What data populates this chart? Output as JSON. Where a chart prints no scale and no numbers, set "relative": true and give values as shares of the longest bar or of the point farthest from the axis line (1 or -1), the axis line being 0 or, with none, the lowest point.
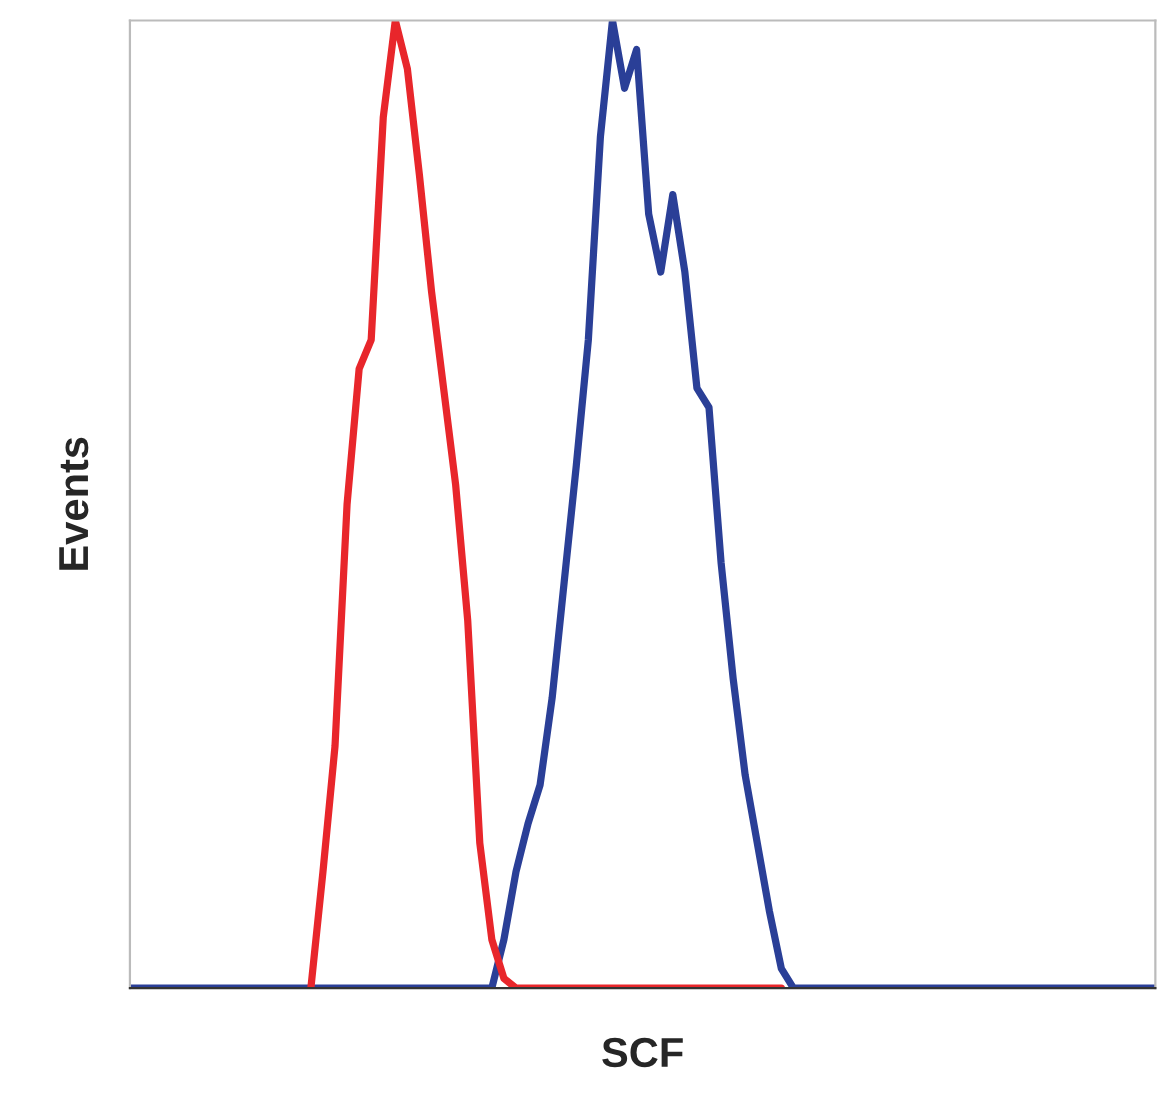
{
  "chart_data": {
    "type": "line",
    "relative": true,
    "xlabel": "SCF",
    "ylabel": "Events",
    "grid": false,
    "legend": false,
    "marker": "none",
    "line_style": "solid",
    "categories": [
      null,
      null,
      null,
      null,
      null,
      null,
      null,
      null,
      null,
      null,
      null,
      null,
      null,
      null,
      null,
      null,
      null,
      null,
      null,
      null,
      null,
      null,
      null,
      null,
      null,
      null,
      null,
      null,
      null,
      null,
      null,
      null,
      null,
      null,
      null,
      null,
      null,
      null,
      null,
      null,
      null,
      null,
      null,
      null,
      null,
      null,
      null,
      null,
      null,
      null,
      null,
      null,
      null,
      null,
      null,
      null,
      null,
      null,
      null,
      null,
      null,
      null,
      null,
      null,
      null,
      null,
      null,
      null,
      null,
      null,
      null,
      null,
      null,
      null,
      null,
      null,
      null,
      null,
      null,
      null,
      null,
      null,
      null,
      null,
      null,
      null
    ],
    "series": [
      {
        "color": "#2a3f97",
        "values": [
          0,
          0,
          0,
          0,
          0,
          0,
          0,
          0,
          0,
          0,
          0,
          0,
          0,
          0,
          0,
          0,
          0,
          0,
          0,
          0,
          0,
          0,
          0,
          0,
          0,
          0,
          0,
          0,
          0,
          0,
          0,
          0.05,
          0.12,
          0.17,
          0.21,
          0.3,
          0.42,
          0.54,
          0.67,
          0.88,
          1.0,
          0.93,
          0.97,
          0.8,
          0.74,
          0.82,
          0.74,
          0.62,
          0.6,
          0.44,
          0.32,
          0.22,
          0.15,
          0.08,
          0.02,
          0,
          0,
          0,
          0,
          0,
          0,
          0,
          0,
          0,
          0,
          0,
          0,
          0,
          0,
          0,
          0,
          0,
          0,
          0,
          0,
          0,
          0,
          0,
          0,
          0,
          0,
          0,
          0,
          0,
          0,
          0
        ]
      },
      {
        "color": "#e8262b",
        "values": [
          null,
          null,
          null,
          null,
          null,
          null,
          null,
          null,
          null,
          null,
          null,
          null,
          null,
          null,
          null,
          0,
          0.12,
          0.25,
          0.5,
          0.64,
          0.67,
          0.9,
          1.0,
          0.95,
          0.84,
          0.72,
          0.62,
          0.52,
          0.38,
          0.15,
          0.05,
          0.01,
          0,
          0,
          0,
          0,
          0,
          0,
          0,
          0,
          0,
          0,
          0,
          0,
          0,
          0,
          0,
          0,
          0,
          0,
          0,
          0,
          0,
          0,
          0,
          null,
          null,
          null,
          null,
          null,
          null,
          null,
          null,
          null,
          null,
          null,
          null,
          null,
          null,
          null,
          null,
          null,
          null,
          null,
          null,
          null,
          null,
          null,
          null,
          null,
          null,
          null,
          null,
          null,
          null,
          null
        ]
      }
    ]
  }
}
